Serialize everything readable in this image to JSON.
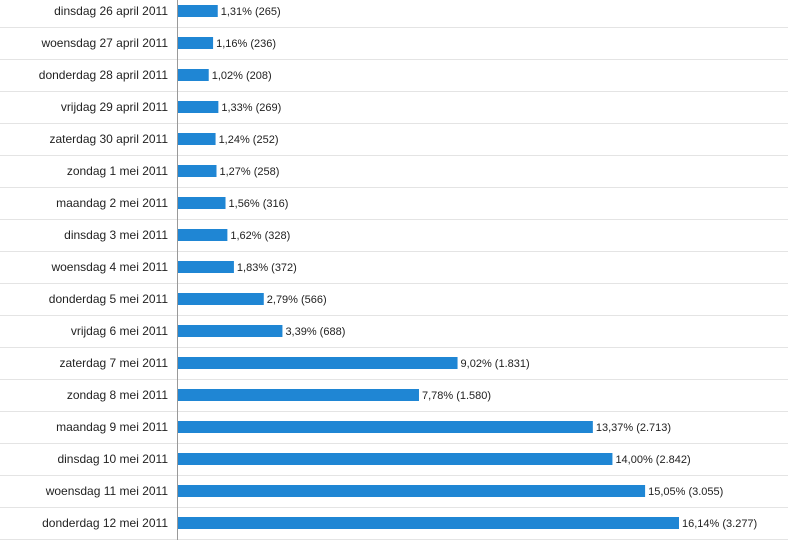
{
  "chart_data": {
    "type": "bar",
    "orientation": "horizontal",
    "bar_color": "#1f86d4",
    "categories": [
      "dinsdag 26 april 2011",
      "woensdag 27 april 2011",
      "donderdag 28 april 2011",
      "vrijdag 29 april 2011",
      "zaterdag 30 april 2011",
      "zondag 1 mei 2011",
      "maandag 2 mei 2011",
      "dinsdag 3 mei 2011",
      "woensdag 4 mei 2011",
      "donderdag 5 mei 2011",
      "vrijdag 6 mei 2011",
      "zaterdag 7 mei 2011",
      "zondag 8 mei 2011",
      "maandag 9 mei 2011",
      "dinsdag 10 mei 2011",
      "woensdag 11 mei 2011",
      "donderdag 12 mei 2011"
    ],
    "values": [
      1.31,
      1.16,
      1.02,
      1.33,
      1.24,
      1.27,
      1.56,
      1.62,
      1.83,
      2.79,
      3.39,
      9.02,
      7.78,
      13.37,
      14.0,
      15.05,
      16.14
    ],
    "counts": [
      265,
      236,
      208,
      269,
      252,
      258,
      316,
      328,
      372,
      566,
      688,
      1831,
      1580,
      2713,
      2842,
      3055,
      3277
    ],
    "data_labels": [
      "1,31% (265)",
      "1,16% (236)",
      "1,02% (208)",
      "1,33% (269)",
      "1,24% (252)",
      "1,27% (258)",
      "1,56% (316)",
      "1,62% (328)",
      "1,83% (372)",
      "2,79% (566)",
      "3,39% (688)",
      "9,02% (1.831)",
      "7,78% (1.580)",
      "13,37% (2.713)",
      "14,00% (2.842)",
      "15,05% (3.055)",
      "16,14% (3.277)"
    ],
    "xlim": [
      0,
      16.14
    ],
    "grid": true,
    "title": "",
    "xlabel": "",
    "ylabel": ""
  }
}
